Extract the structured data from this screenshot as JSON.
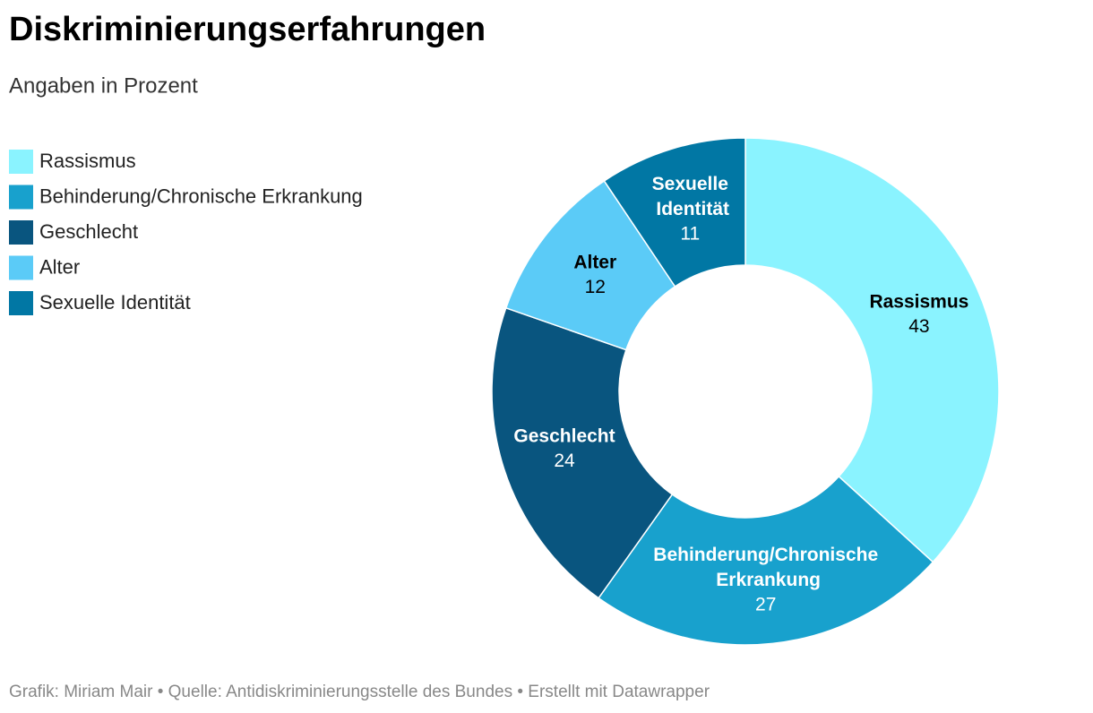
{
  "chart_data": {
    "type": "donut",
    "title": "Diskriminierungserfahrungen",
    "subtitle": "Angaben in Prozent",
    "categories": [
      "Rassismus",
      "Behinderung/Chronische Erkrankung",
      "Geschlecht",
      "Alter",
      "Sexuelle Identität"
    ],
    "values": [
      43,
      27,
      24,
      12,
      11
    ],
    "colors": [
      "#8af3ff",
      "#18a1cd",
      "#09557f",
      "#5bcbf7",
      "#0177a4"
    ],
    "label_colors": [
      "#000000",
      "#ffffff",
      "#ffffff",
      "#000000",
      "#ffffff"
    ],
    "legend": "top-left"
  },
  "footer": "Grafik: Miriam Mair • Quelle: Antidiskriminierungsstelle des Bundes • Erstellt mit Datawrapper"
}
